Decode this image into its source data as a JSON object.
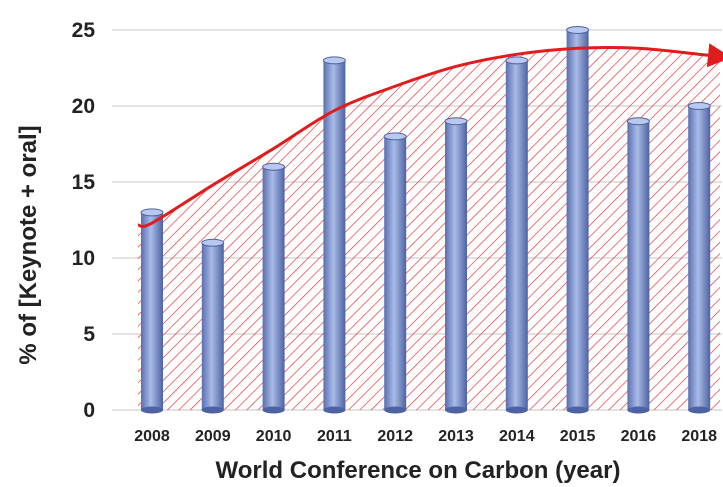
{
  "chart_data": {
    "type": "bar",
    "xlabel": "World Conference on Carbon  (year)",
    "ylabel": "% of [Keynote + oral]",
    "categories": [
      "2008",
      "2009",
      "2010",
      "2011",
      "2012",
      "2013",
      "2014",
      "2015",
      "2016",
      "2018"
    ],
    "values": [
      13,
      11,
      16,
      23,
      18,
      19,
      23,
      25,
      19,
      20
    ],
    "ylim": [
      0,
      25
    ],
    "yticks": [
      0,
      5,
      10,
      15,
      20,
      25
    ],
    "grid": true,
    "legend": "none",
    "trend": {
      "type": "curve",
      "values": [
        12.3,
        14.8,
        17.2,
        19.7,
        21.3,
        22.6,
        23.4,
        23.8,
        23.8,
        23.4
      ]
    },
    "colors": {
      "bar": "#8fa4d6",
      "bar_dark": "#4a5f9e",
      "trend": "#e01c1c",
      "hatch": "#e23a3a",
      "grid": "#d9d9d9"
    }
  }
}
